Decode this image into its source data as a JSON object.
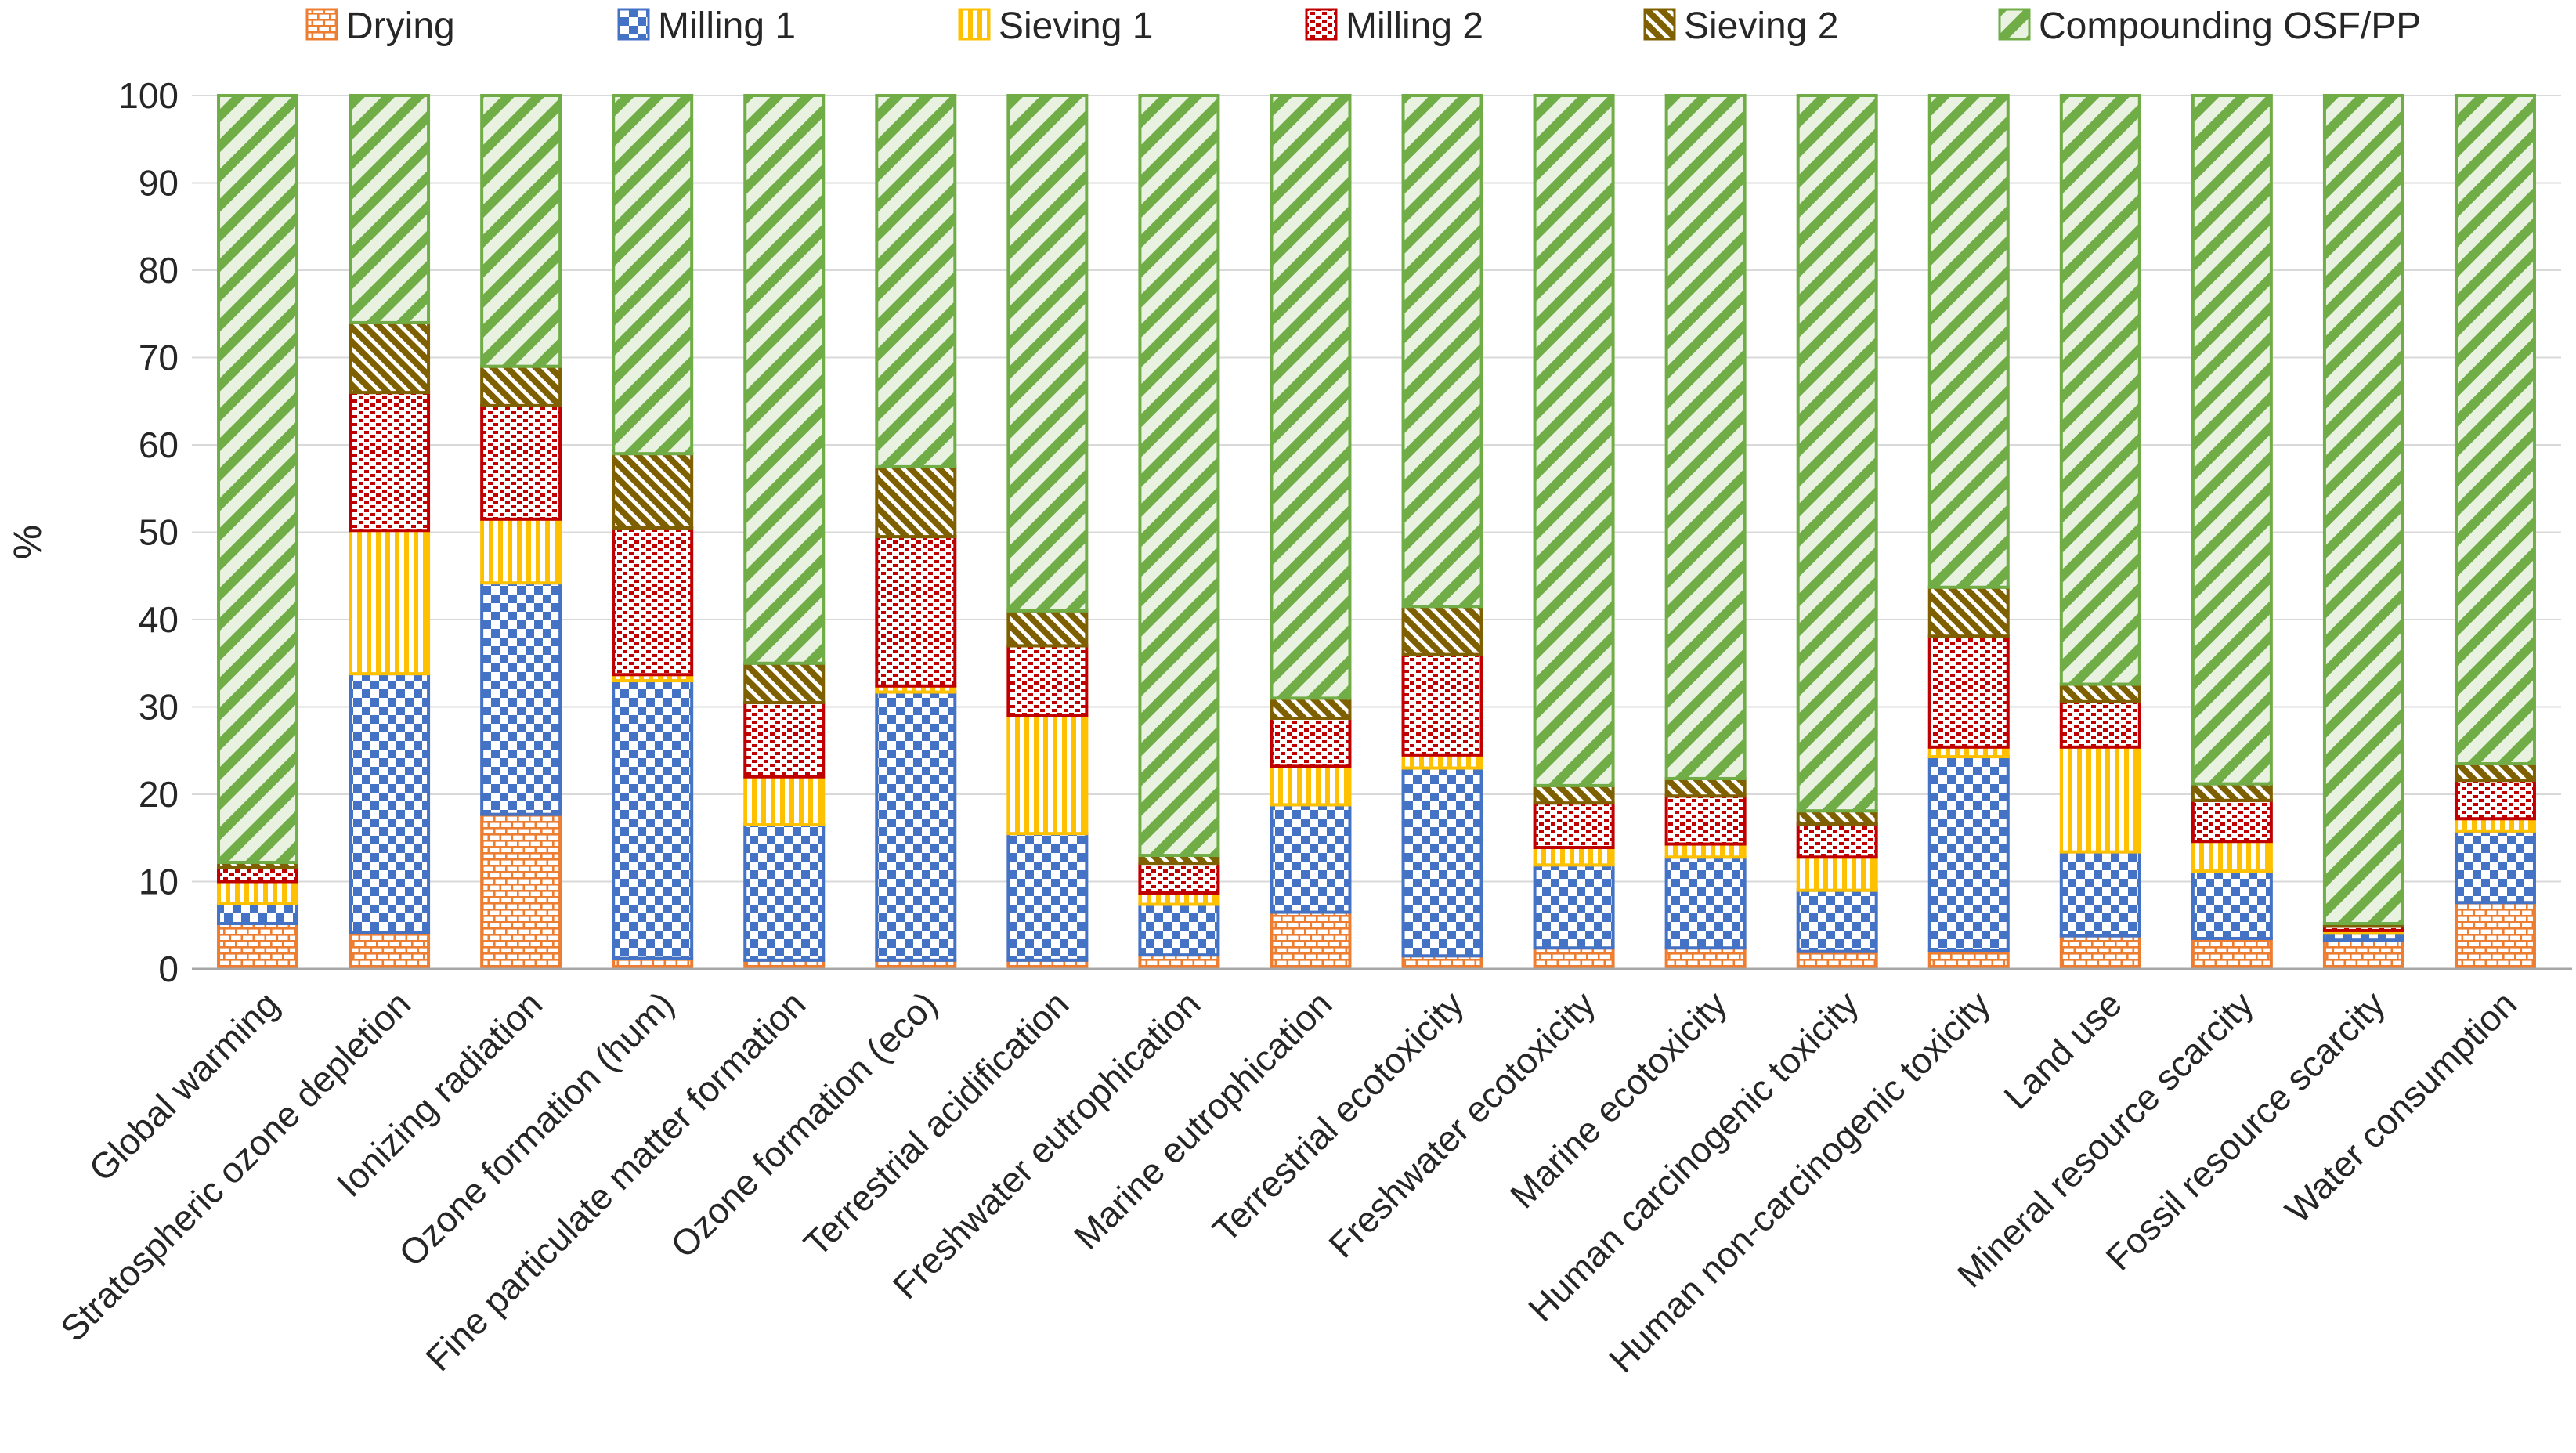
{
  "chart_data": {
    "type": "bar",
    "stacked": true,
    "percent": true,
    "title": "",
    "ylabel": "%",
    "xlabel": "",
    "ylim": [
      0,
      100
    ],
    "ytick_step": 10,
    "yticks": [
      0,
      10,
      20,
      30,
      40,
      50,
      60,
      70,
      80,
      90,
      100
    ],
    "grid": true,
    "legend_position": "top",
    "categories": [
      "Global warming",
      "Stratospheric ozone depletion",
      "Ionizing radiation",
      "Ozone formation (hum)",
      "Fine particulate matter formation",
      "Ozone formation (eco)",
      "Terrestrial acidification",
      "Freshwater eutrophication",
      "Marine eutrophication",
      "Terrestrial ecotoxicity",
      "Freshwater ecotoxicity",
      "Marine ecotoxicity",
      "Human carcinogenic toxicity",
      "Human non-carcinogenic toxicity",
      "Land use",
      "Mineral resource scarcity",
      "Fossil resource scarcity",
      "Water consumption"
    ],
    "series": [
      {
        "name": "Drying",
        "color": "#ED7D31",
        "pattern": "brick",
        "values": [
          5.2,
          4.2,
          17.7,
          1.2,
          1.0,
          1.0,
          1.0,
          1.6,
          6.5,
          1.5,
          2.4,
          2.4,
          2.0,
          2.1,
          3.8,
          3.5,
          3.3,
          7.6
        ]
      },
      {
        "name": "Milling 1",
        "color": "#4472C4",
        "pattern": "checker",
        "values": [
          2.3,
          29.6,
          26.5,
          31.8,
          15.5,
          30.7,
          14.5,
          5.8,
          12.3,
          21.5,
          9.5,
          10.4,
          7.0,
          22.2,
          9.6,
          7.7,
          0.8,
          8.2
        ]
      },
      {
        "name": "Sieving 1",
        "color": "#FFC000",
        "pattern": "vstripe",
        "values": [
          2.5,
          16.4,
          7.3,
          0.7,
          5.5,
          0.7,
          13.5,
          1.3,
          4.4,
          1.5,
          2.0,
          1.5,
          3.8,
          1.1,
          12.0,
          3.4,
          0.3,
          1.4
        ]
      },
      {
        "name": "Milling 2",
        "color": "#C00000",
        "pattern": "confetti",
        "values": [
          1.6,
          15.8,
          13.0,
          16.8,
          8.5,
          17.1,
          8.0,
          3.4,
          5.5,
          11.5,
          5.1,
          5.5,
          3.8,
          12.7,
          5.2,
          4.7,
          0.5,
          4.4
        ]
      },
      {
        "name": "Sieving 2",
        "color": "#7F6000",
        "pattern": "diagdown",
        "values": [
          0.6,
          8.0,
          4.5,
          8.5,
          4.5,
          8.0,
          4.0,
          0.9,
          2.3,
          5.5,
          2.0,
          2.0,
          1.5,
          5.6,
          2.0,
          1.9,
          0.3,
          1.9
        ]
      },
      {
        "name": "Compounding OSF/PP",
        "color": "#70AD47",
        "pattern": "diagup",
        "stripe_bg": "#E9F2E1",
        "values": [
          87.8,
          26.0,
          31.0,
          41.0,
          65.0,
          42.5,
          59.0,
          87.0,
          69.0,
          58.5,
          79.0,
          78.2,
          81.9,
          56.3,
          67.4,
          78.8,
          94.8,
          76.5
        ]
      }
    ],
    "axis_color": "#A6A6A6",
    "gridline_color": "#D9D9D9",
    "text_color": "#262626"
  }
}
